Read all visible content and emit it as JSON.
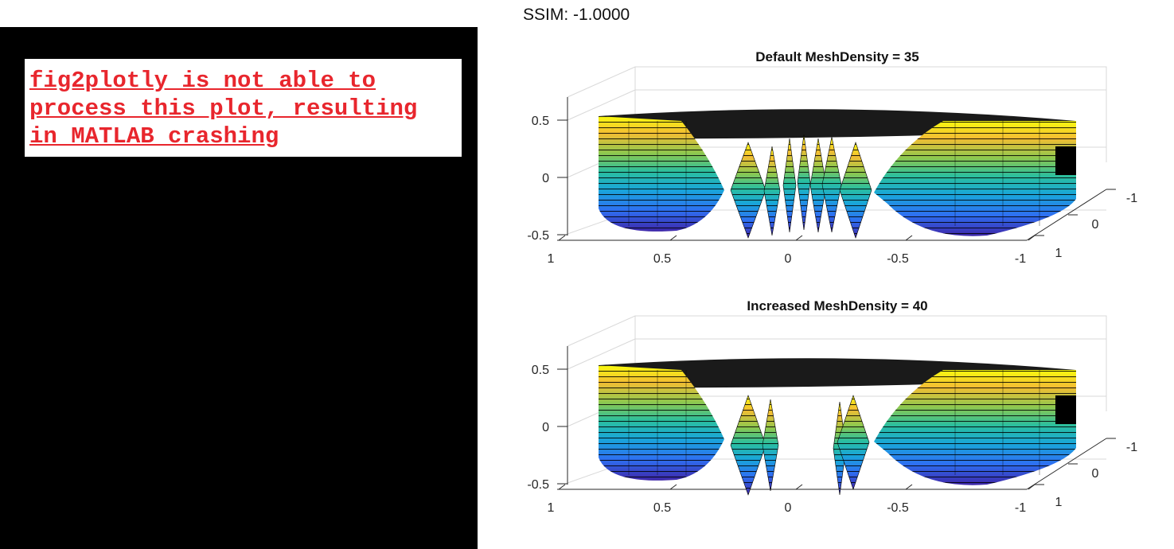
{
  "left_panel": {
    "error_text": "fig2plotly is not able to\nprocess this plot, resulting\nin MATLAB crashing"
  },
  "ssim_label": "SSIM: -1.0000",
  "colors": {
    "panel_bg": "#000000",
    "error_text": "#e8262d",
    "surface_colormap": [
      "#3e26a8",
      "#2e6ff2",
      "#19a6da",
      "#2bbf9e",
      "#8fc84e",
      "#f3bd33",
      "#f9fb0e"
    ]
  },
  "chart_data": [
    {
      "type": "surface",
      "title": "Default MeshDensity = 35",
      "xlim": [
        -1,
        1
      ],
      "ylim": [
        -1,
        1
      ],
      "zlim": [
        -0.5,
        0.5
      ],
      "x_ticks": [
        "1",
        "0.5",
        "0",
        "-0.5",
        "-1"
      ],
      "y_ticks": [
        "-1",
        "0",
        "1"
      ],
      "z_ticks": [
        "0.5",
        "0",
        "-0.5"
      ],
      "grid": true,
      "colormap": "parula"
    },
    {
      "type": "surface",
      "title": "Increased MeshDensity = 40",
      "xlim": [
        -1,
        1
      ],
      "ylim": [
        -1,
        1
      ],
      "zlim": [
        -0.5,
        0.5
      ],
      "x_ticks": [
        "1",
        "0.5",
        "0",
        "-0.5",
        "-1"
      ],
      "y_ticks": [
        "-1",
        "0",
        "1"
      ],
      "z_ticks": [
        "0.5",
        "0",
        "-0.5"
      ],
      "grid": true,
      "colormap": "parula"
    }
  ]
}
